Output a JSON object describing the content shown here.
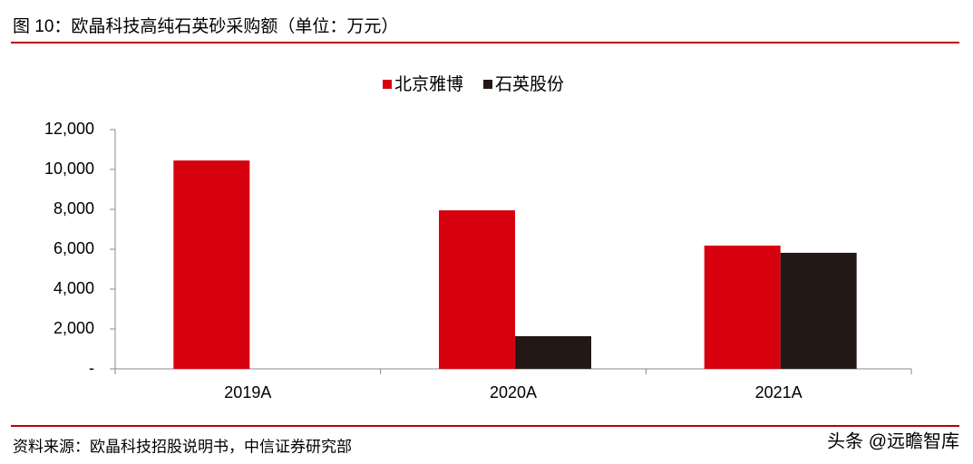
{
  "chart_data": {
    "type": "bar",
    "title": "图 10：欧晶科技高纯石英砂采购额（单位：万元）",
    "source": "资料来源：欧晶科技招股说明书，中信证券研究部",
    "watermark": "头条 @远瞻智库",
    "categories": [
      "2019A",
      "2020A",
      "2021A"
    ],
    "series": [
      {
        "name": "北京雅博",
        "color": "#d7000f",
        "values": [
          10450,
          7950,
          6180
        ]
      },
      {
        "name": "石英股份",
        "color": "#231815",
        "values": [
          0,
          1640,
          5820
        ]
      }
    ],
    "ylim": [
      0,
      12000
    ],
    "yticks": [
      {
        "value": 0,
        "label": "-"
      },
      {
        "value": 2000,
        "label": "2,000"
      },
      {
        "value": 4000,
        "label": "4,000"
      },
      {
        "value": 6000,
        "label": "6,000"
      },
      {
        "value": 8000,
        "label": "8,000"
      },
      {
        "value": 10000,
        "label": "10,000"
      },
      {
        "value": 12000,
        "label": "12,000"
      }
    ],
    "legend": "top"
  }
}
